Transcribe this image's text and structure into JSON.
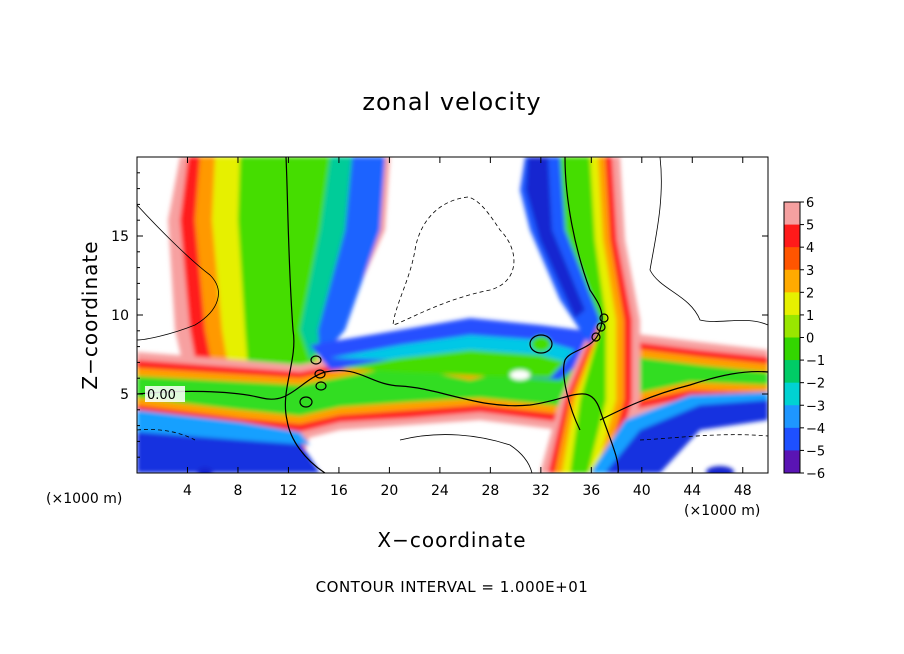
{
  "chart_data": {
    "type": "heatmap",
    "title": "zonal velocity",
    "xlabel": "X−coordinate",
    "ylabel": "Z−coordinate",
    "x_unit": "(×1000 m)",
    "xlim": [
      0,
      50
    ],
    "ylim": [
      0,
      20
    ],
    "x_ticks": [
      4,
      8,
      12,
      16,
      20,
      24,
      28,
      32,
      36,
      40,
      44,
      48
    ],
    "x_tick_labels": [
      "4",
      "8",
      "12",
      "16",
      "20",
      "24",
      "28",
      "32",
      "36",
      "40",
      "44",
      "48"
    ],
    "y_ticks": [
      5,
      10,
      15
    ],
    "y_tick_labels": [
      "5",
      "10",
      "15"
    ],
    "colorbar": {
      "min": -6,
      "max": 6,
      "tick_labels": [
        "6",
        "5",
        "4",
        "3",
        "2",
        "1",
        "0",
        "−1",
        "−2",
        "−3",
        "−4",
        "−5",
        "−6"
      ]
    },
    "contour_label": "0.00",
    "footer": "CONTOUR INTERVAL = 1.000E+01",
    "grid": false
  }
}
